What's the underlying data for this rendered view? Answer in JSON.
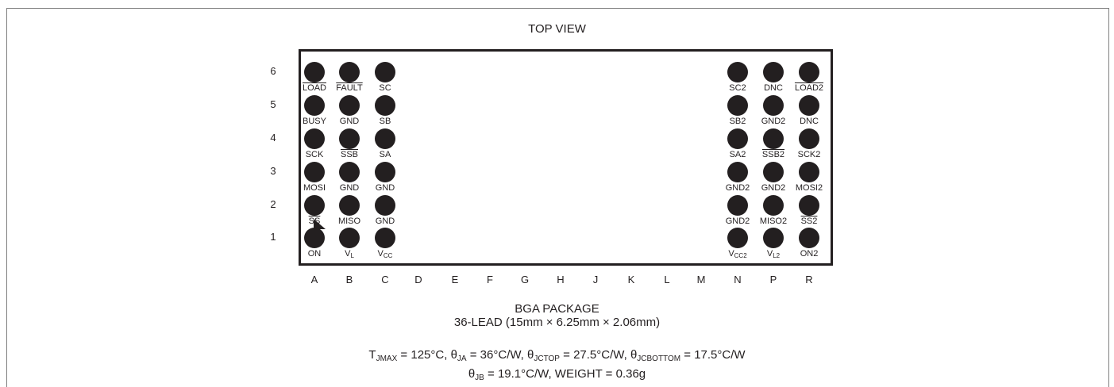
{
  "title": "TOP VIEW",
  "rows": [
    "6",
    "5",
    "4",
    "3",
    "2",
    "1"
  ],
  "columns": [
    "A",
    "B",
    "C",
    "D",
    "E",
    "F",
    "G",
    "H",
    "J",
    "K",
    "L",
    "M",
    "N",
    "P",
    "R"
  ],
  "pins": [
    {
      "row": "6",
      "col": "A",
      "label": "LOAD",
      "overline": true
    },
    {
      "row": "6",
      "col": "B",
      "label": "FAULT",
      "overline": true
    },
    {
      "row": "6",
      "col": "C",
      "label": "SC"
    },
    {
      "row": "6",
      "col": "N",
      "label": "SC2"
    },
    {
      "row": "6",
      "col": "P",
      "label": "DNC"
    },
    {
      "row": "6",
      "col": "R",
      "label": "LOAD2",
      "overline": true
    },
    {
      "row": "5",
      "col": "A",
      "label": "BUSY"
    },
    {
      "row": "5",
      "col": "B",
      "label": "GND"
    },
    {
      "row": "5",
      "col": "C",
      "label": "SB"
    },
    {
      "row": "5",
      "col": "N",
      "label": "SB2"
    },
    {
      "row": "5",
      "col": "P",
      "label": "GND2"
    },
    {
      "row": "5",
      "col": "R",
      "label": "DNC"
    },
    {
      "row": "4",
      "col": "A",
      "label": "SCK"
    },
    {
      "row": "4",
      "col": "B",
      "label": "SSB",
      "overline": true
    },
    {
      "row": "4",
      "col": "C",
      "label": "SA"
    },
    {
      "row": "4",
      "col": "N",
      "label": "SA2"
    },
    {
      "row": "4",
      "col": "P",
      "label": "SSB2",
      "overline": true
    },
    {
      "row": "4",
      "col": "R",
      "label": "SCK2"
    },
    {
      "row": "3",
      "col": "A",
      "label": "MOSI"
    },
    {
      "row": "3",
      "col": "B",
      "label": "GND"
    },
    {
      "row": "3",
      "col": "C",
      "label": "GND"
    },
    {
      "row": "3",
      "col": "N",
      "label": "GND2"
    },
    {
      "row": "3",
      "col": "P",
      "label": "GND2"
    },
    {
      "row": "3",
      "col": "R",
      "label": "MOSI2"
    },
    {
      "row": "2",
      "col": "A",
      "label": "SS",
      "overline": true
    },
    {
      "row": "2",
      "col": "B",
      "label": "MISO"
    },
    {
      "row": "2",
      "col": "C",
      "label": "GND"
    },
    {
      "row": "2",
      "col": "N",
      "label": "GND2"
    },
    {
      "row": "2",
      "col": "P",
      "label": "MISO2"
    },
    {
      "row": "2",
      "col": "R",
      "label": "SS2",
      "overline": true
    },
    {
      "row": "1",
      "col": "A",
      "label": "ON"
    },
    {
      "row": "1",
      "col": "B",
      "label": "V",
      "sub": "L"
    },
    {
      "row": "1",
      "col": "C",
      "label": "V",
      "sub": "CC"
    },
    {
      "row": "1",
      "col": "N",
      "label": "V",
      "sub": "CC2"
    },
    {
      "row": "1",
      "col": "P",
      "label": "V",
      "sub": "L2"
    },
    {
      "row": "1",
      "col": "R",
      "label": "ON2"
    }
  ],
  "caption": {
    "line1": "BGA PACKAGE",
    "line2": "36-LEAD (15mm × 6.25mm × 2.06mm)"
  },
  "thermal": {
    "tjmax_sym": "T",
    "tjmax_sub": "JMAX",
    "tjmax_val": " = 125°C, ",
    "ja_sym": "θ",
    "ja_sub": "JA",
    "ja_val": " = 36°C/W, ",
    "jctop_sym": "θ",
    "jctop_sub": "JCTOP",
    "jctop_val": " = 27.5°C/W, ",
    "jcbottom_sym": "θ",
    "jcbottom_sub": "JCBOTTOM",
    "jcbottom_val": " = 17.5°C/W",
    "jb_sym": "θ",
    "jb_sub": "JB",
    "jb_val": " = 19.1°C/W, WEIGHT = 0.36g"
  }
}
